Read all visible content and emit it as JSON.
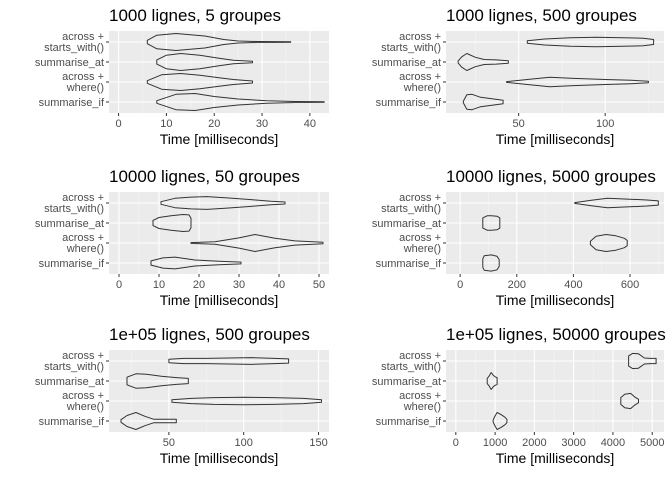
{
  "style": {
    "panel_bg": "#ebebeb",
    "grid_major": "#ffffff",
    "grid_minor": "#f5f5f5",
    "violin_stroke": "#333333",
    "tick_text": "#4d4d4d"
  },
  "chart_data": [
    {
      "type": "violin",
      "title": "1000 lignes, 5 groupes",
      "xlabel": "Time [milliseconds]",
      "categories": [
        [
          "across +",
          "starts_with()"
        ],
        [
          "summarise_at"
        ],
        [
          "across +",
          "where()"
        ],
        [
          "summarise_if"
        ]
      ],
      "xlim": [
        -2,
        44
      ],
      "xticks": [
        0,
        10,
        20,
        30,
        40
      ],
      "grid": true,
      "violins": [
        {
          "category": "across + starts_with()",
          "points": [
            [
              6,
              0.2
            ],
            [
              8,
              0.8
            ],
            [
              12,
              1.0
            ],
            [
              18,
              0.7
            ],
            [
              22,
              0.3
            ],
            [
              25,
              0.12
            ],
            [
              29,
              0.06
            ],
            [
              36,
              0.03
            ]
          ]
        },
        {
          "category": "summarise_at",
          "points": [
            [
              8,
              0.25
            ],
            [
              10,
              0.8
            ],
            [
              13,
              1.0
            ],
            [
              17,
              0.8
            ],
            [
              21,
              0.45
            ],
            [
              24,
              0.2
            ],
            [
              28,
              0.08
            ]
          ]
        },
        {
          "category": "across + where()",
          "points": [
            [
              6,
              0.15
            ],
            [
              9,
              0.85
            ],
            [
              13,
              1.0
            ],
            [
              17,
              0.8
            ],
            [
              21,
              0.5
            ],
            [
              24,
              0.3
            ],
            [
              28,
              0.12
            ]
          ]
        },
        {
          "category": "summarise_if",
          "points": [
            [
              8,
              0.15
            ],
            [
              12,
              0.9
            ],
            [
              16,
              1.0
            ],
            [
              20,
              0.65
            ],
            [
              25,
              0.35
            ],
            [
              31,
              0.15
            ],
            [
              37,
              0.06
            ],
            [
              43,
              0.02
            ]
          ]
        }
      ]
    },
    {
      "type": "violin",
      "title": "1000 lignes, 500 groupes",
      "xlabel": "Time [milliseconds]",
      "categories": [
        [
          "across +",
          "starts_with()"
        ],
        [
          "summarise_at"
        ],
        [
          "across +",
          "where()"
        ],
        [
          "summarise_if"
        ]
      ],
      "xlim": [
        8,
        134
      ],
      "xticks": [
        50,
        100
      ],
      "grid": true,
      "violins": [
        {
          "category": "across + starts_with()",
          "points": [
            [
              55,
              0.15
            ],
            [
              65,
              0.35
            ],
            [
              80,
              0.5
            ],
            [
              95,
              0.55
            ],
            [
              110,
              0.5
            ],
            [
              122,
              0.45
            ],
            [
              128,
              0.3
            ]
          ]
        },
        {
          "category": "summarise_at",
          "points": [
            [
              15,
              0.1
            ],
            [
              17,
              0.6
            ],
            [
              20,
              1.0
            ],
            [
              25,
              0.55
            ],
            [
              30,
              0.3
            ],
            [
              37,
              0.25
            ],
            [
              44,
              0.15
            ]
          ]
        },
        {
          "category": "across + where()",
          "points": [
            [
              43,
              0.05
            ],
            [
              55,
              0.3
            ],
            [
              68,
              0.55
            ],
            [
              80,
              0.45
            ],
            [
              100,
              0.3
            ],
            [
              115,
              0.2
            ],
            [
              125,
              0.1
            ]
          ]
        },
        {
          "category": "summarise_if",
          "points": [
            [
              18,
              0.1
            ],
            [
              20,
              0.85
            ],
            [
              23,
              0.9
            ],
            [
              28,
              0.55
            ],
            [
              34,
              0.4
            ],
            [
              41,
              0.2
            ]
          ]
        }
      ]
    },
    {
      "type": "violin",
      "title": "10000 lignes, 50 groupes",
      "xlabel": "Time [milliseconds]",
      "categories": [
        [
          "across +",
          "starts_with()"
        ],
        [
          "summarise_at"
        ],
        [
          "across +",
          "where()"
        ],
        [
          "summarise_if"
        ]
      ],
      "xlim": [
        -2.5,
        52.5
      ],
      "xticks": [
        0,
        10,
        20,
        30,
        40,
        50
      ],
      "grid": true,
      "violins": [
        {
          "category": "across + starts_with()",
          "points": [
            [
              10.5,
              0.15
            ],
            [
              14,
              0.55
            ],
            [
              18,
              0.7
            ],
            [
              22,
              0.75
            ],
            [
              27,
              0.6
            ],
            [
              33,
              0.4
            ],
            [
              38,
              0.2
            ],
            [
              41.5,
              0.12
            ]
          ]
        },
        {
          "category": "summarise_at",
          "points": [
            [
              8.5,
              0.3
            ],
            [
              10,
              0.65
            ],
            [
              13,
              0.85
            ],
            [
              16,
              1.0
            ],
            [
              17.5,
              0.95
            ],
            [
              18,
              0.55
            ]
          ]
        },
        {
          "category": "across + where()",
          "points": [
            [
              18,
              0.05
            ],
            [
              24,
              0.15
            ],
            [
              30,
              0.6
            ],
            [
              34,
              1.0
            ],
            [
              39,
              0.55
            ],
            [
              44,
              0.25
            ],
            [
              51,
              0.1
            ]
          ]
        },
        {
          "category": "summarise_if",
          "points": [
            [
              8,
              0.25
            ],
            [
              11,
              0.6
            ],
            [
              14,
              0.7
            ],
            [
              19,
              0.35
            ],
            [
              25,
              0.2
            ],
            [
              30.5,
              0.1
            ]
          ]
        }
      ]
    },
    {
      "type": "violin",
      "title": "10000 lignes, 5000 groupes",
      "xlabel": "Time [milliseconds]",
      "categories": [
        [
          "across +",
          "starts_with()"
        ],
        [
          "summarise_at"
        ],
        [
          "across +",
          "where()"
        ],
        [
          "summarise_if"
        ]
      ],
      "xlim": [
        -50,
        720
      ],
      "xticks": [
        0,
        200,
        400,
        600
      ],
      "grid": true,
      "violins": [
        {
          "category": "across + starts_with()",
          "points": [
            [
              405,
              0.05
            ],
            [
              460,
              0.3
            ],
            [
              520,
              0.55
            ],
            [
              600,
              0.45
            ],
            [
              660,
              0.35
            ],
            [
              700,
              0.25
            ]
          ]
        },
        {
          "category": "summarise_at",
          "points": [
            [
              80,
              0.6
            ],
            [
              95,
              0.85
            ],
            [
              110,
              0.85
            ],
            [
              130,
              0.8
            ],
            [
              140,
              0.6
            ]
          ]
        },
        {
          "category": "across + where()",
          "points": [
            [
              460,
              0.2
            ],
            [
              480,
              0.8
            ],
            [
              515,
              1.0
            ],
            [
              550,
              0.85
            ],
            [
              580,
              0.55
            ],
            [
              590,
              0.3
            ]
          ]
        },
        {
          "category": "summarise_if",
          "points": [
            [
              80,
              0.5
            ],
            [
              85,
              0.85
            ],
            [
              110,
              0.95
            ],
            [
              130,
              0.8
            ],
            [
              138,
              0.4
            ]
          ]
        }
      ]
    },
    {
      "type": "violin",
      "title": "1e+05 lignes, 500 groupes",
      "xlabel": "Time [milliseconds]",
      "categories": [
        [
          "across +",
          "starts_with()"
        ],
        [
          "summarise_at"
        ],
        [
          "across +",
          "where()"
        ],
        [
          "summarise_if"
        ]
      ],
      "xlim": [
        10,
        157
      ],
      "xticks": [
        50,
        100,
        150
      ],
      "grid": true,
      "violins": [
        {
          "category": "across + starts_with()",
          "points": [
            [
              50,
              0.2
            ],
            [
              60,
              0.3
            ],
            [
              75,
              0.3
            ],
            [
              90,
              0.35
            ],
            [
              105,
              0.4
            ],
            [
              118,
              0.32
            ],
            [
              130,
              0.25
            ]
          ]
        },
        {
          "category": "summarise_at",
          "points": [
            [
              22,
              0.45
            ],
            [
              28,
              0.85
            ],
            [
              35,
              0.8
            ],
            [
              45,
              0.55
            ],
            [
              55,
              0.4
            ],
            [
              63,
              0.3
            ]
          ]
        },
        {
          "category": "across + where()",
          "points": [
            [
              52,
              0.15
            ],
            [
              65,
              0.3
            ],
            [
              80,
              0.4
            ],
            [
              100,
              0.45
            ],
            [
              120,
              0.4
            ],
            [
              140,
              0.3
            ],
            [
              152,
              0.15
            ]
          ]
        },
        {
          "category": "summarise_if",
          "points": [
            [
              18,
              0.15
            ],
            [
              22,
              0.65
            ],
            [
              28,
              1.0
            ],
            [
              34,
              0.55
            ],
            [
              40,
              0.2
            ],
            [
              48,
              0.2
            ],
            [
              55,
              0.2
            ]
          ]
        }
      ]
    },
    {
      "type": "violin",
      "title": "1e+05 lignes, 50000 groupes",
      "xlabel": "Time [milliseconds]",
      "categories": [
        [
          "across +",
          "starts_with()"
        ],
        [
          "summarise_at"
        ],
        [
          "across +",
          "where()"
        ],
        [
          "summarise_if"
        ]
      ],
      "xlim": [
        -250,
        5300
      ],
      "xticks": [
        0,
        1000,
        2000,
        3000,
        4000,
        5000
      ],
      "grid": true,
      "violins": [
        {
          "category": "across + starts_with()",
          "points": [
            [
              4400,
              0.6
            ],
            [
              4500,
              0.9
            ],
            [
              4650,
              0.85
            ],
            [
              4800,
              0.35
            ],
            [
              4950,
              0.3
            ],
            [
              5100,
              0.3
            ]
          ]
        },
        {
          "category": "summarise_at",
          "points": [
            [
              800,
              0.3
            ],
            [
              850,
              0.6
            ],
            [
              900,
              1.0
            ],
            [
              950,
              0.7
            ],
            [
              1000,
              0.5
            ],
            [
              1050,
              0.4
            ]
          ]
        },
        {
          "category": "across + where()",
          "points": [
            [
              4200,
              0.4
            ],
            [
              4300,
              0.8
            ],
            [
              4450,
              0.9
            ],
            [
              4550,
              0.5
            ],
            [
              4650,
              0.2
            ]
          ]
        },
        {
          "category": "summarise_if",
          "points": [
            [
              950,
              0.1
            ],
            [
              1000,
              0.6
            ],
            [
              1050,
              1.0
            ],
            [
              1150,
              0.75
            ],
            [
              1250,
              0.45
            ],
            [
              1300,
              0.2
            ]
          ]
        }
      ]
    }
  ]
}
